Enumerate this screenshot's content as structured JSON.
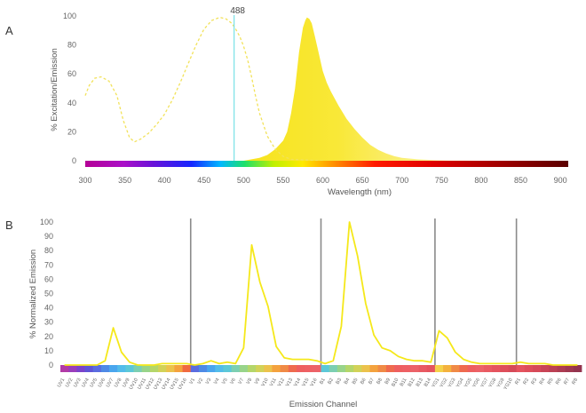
{
  "panels": {
    "a": "A",
    "b": "B"
  },
  "chart_data": [
    {
      "type": "area",
      "xlabel": "Wavelength (nm)",
      "ylabel": "% Excitation/Emission",
      "xlim": [
        300,
        910
      ],
      "ylim": [
        0,
        100
      ],
      "xticks": [
        300,
        350,
        400,
        450,
        500,
        550,
        600,
        650,
        700,
        750,
        800,
        850,
        900
      ],
      "yticks": [
        0,
        20,
        40,
        60,
        80,
        100
      ],
      "annotation": {
        "label": "488",
        "x": 488
      },
      "series": [
        {
          "style": "dashed-line",
          "color": "#f2e25a",
          "x": [
            300,
            305,
            312,
            320,
            330,
            340,
            348,
            356,
            362,
            370,
            380,
            390,
            400,
            410,
            420,
            430,
            440,
            450,
            460,
            470,
            478,
            485,
            490,
            495,
            500,
            505,
            510,
            515,
            520,
            530,
            540,
            550,
            560,
            580,
            600
          ],
          "values": [
            45,
            52,
            57,
            58,
            55,
            45,
            28,
            16,
            13,
            15,
            19,
            25,
            32,
            42,
            54,
            67,
            80,
            91,
            97,
            99,
            98,
            95,
            91,
            86,
            79,
            70,
            58,
            45,
            33,
            17,
            8,
            3,
            1,
            0.5,
            0
          ]
        },
        {
          "style": "filled",
          "color": "#f7e11e",
          "x": [
            500,
            510,
            520,
            530,
            540,
            550,
            555,
            560,
            565,
            570,
            575,
            578,
            580,
            583,
            586,
            590,
            595,
            600,
            605,
            610,
            620,
            630,
            640,
            650,
            660,
            670,
            680,
            690,
            700,
            720,
            740,
            760,
            780,
            800
          ],
          "values": [
            0,
            1,
            2,
            4,
            8,
            14,
            20,
            33,
            50,
            75,
            92,
            97,
            99,
            98,
            95,
            86,
            74,
            62,
            54,
            48,
            38,
            29,
            22,
            16,
            11,
            7.5,
            5,
            3.2,
            2,
            1,
            0.5,
            0.2,
            0.1,
            0
          ]
        }
      ]
    },
    {
      "type": "line",
      "xlabel": "Emission Channel",
      "ylabel": "% Normalized Emission",
      "ylim": [
        0,
        100
      ],
      "yticks": [
        0,
        10,
        20,
        30,
        40,
        50,
        60,
        70,
        80,
        90,
        100
      ],
      "categories": [
        "UV1",
        "UV2",
        "UV3",
        "UV4",
        "UV5",
        "UV6",
        "UV7",
        "UV8",
        "UV9",
        "UV10",
        "UV11",
        "UV12",
        "UV13",
        "UV14",
        "UV15",
        "UV16",
        "V1",
        "V2",
        "V3",
        "V4",
        "V5",
        "V6",
        "V7",
        "V8",
        "V9",
        "V10",
        "V11",
        "V12",
        "V13",
        "V14",
        "V15",
        "V16",
        "B1",
        "B2",
        "B3",
        "B4",
        "B5",
        "B6",
        "B7",
        "B8",
        "B9",
        "B10",
        "B11",
        "B12",
        "B13",
        "B14",
        "YG1",
        "YG2",
        "YG3",
        "YG4",
        "YG5",
        "YG6",
        "YG7",
        "YG8",
        "YG9",
        "YG10",
        "R1",
        "R2",
        "R3",
        "R4",
        "R5",
        "R6",
        "R7",
        "R8"
      ],
      "group_separators_after": [
        "UV16",
        "V16",
        "B14",
        "YG10"
      ],
      "series": [
        {
          "color": "#f5e81a",
          "values": [
            0,
            0,
            0,
            0,
            0,
            3,
            26,
            9,
            2,
            0,
            0,
            0,
            1,
            1,
            1,
            1,
            0,
            1,
            3,
            1,
            2,
            1,
            12,
            84,
            58,
            41,
            13,
            5,
            4,
            4,
            4,
            3,
            1,
            3,
            27,
            100,
            76,
            43,
            21,
            12,
            10,
            6,
            4,
            3,
            3,
            2,
            24,
            19,
            9,
            4,
            2,
            1,
            1,
            1,
            1,
            1,
            2,
            1,
            1,
            1,
            0,
            0,
            0,
            0
          ]
        }
      ]
    }
  ]
}
